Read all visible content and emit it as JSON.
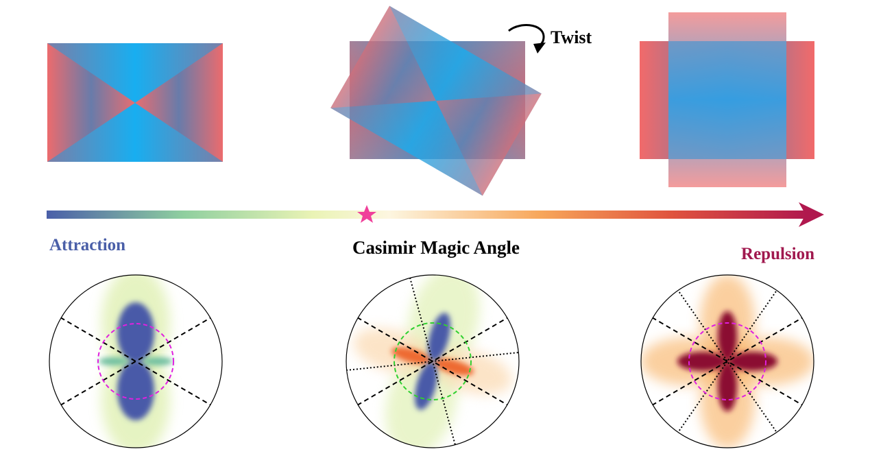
{
  "labels": {
    "twist": "Twist",
    "attraction": "Attraction",
    "magic_angle": "Casimir Magic Angle",
    "repulsion": "Repulsion"
  }
}
